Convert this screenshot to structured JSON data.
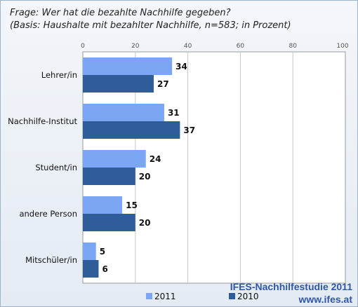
{
  "question": {
    "line1": "Frage: Wer hat die bezahlte Nachhilfe gegeben?",
    "line2": "(Basis: Haushalte mit bezahlter Nachhilfe, n=583; in Prozent)"
  },
  "branding": {
    "study": "IFES-Nachhilfestudie 2011",
    "url": "www.ifes.at"
  },
  "colors": {
    "series_2011": "#7aa6f4",
    "series_2010": "#2e5d99"
  },
  "chart_data": {
    "type": "bar",
    "orientation": "horizontal",
    "categories": [
      "Lehrer/in",
      "Nachhilfe-Institut",
      "Student/in",
      "andere Person",
      "Mitschüler/in"
    ],
    "series": [
      {
        "name": "2011",
        "values": [
          34,
          31,
          24,
          15,
          5
        ]
      },
      {
        "name": "2010",
        "values": [
          27,
          37,
          20,
          20,
          6
        ]
      }
    ],
    "xlim": [
      0,
      100
    ],
    "xticks": [
      0,
      20,
      40,
      60,
      80,
      100
    ],
    "xtick_labels": [
      "0",
      "20",
      "40",
      "60",
      "80",
      "100"
    ],
    "grid": true,
    "legend": "bottom",
    "title": "",
    "xlabel": "",
    "ylabel": ""
  }
}
